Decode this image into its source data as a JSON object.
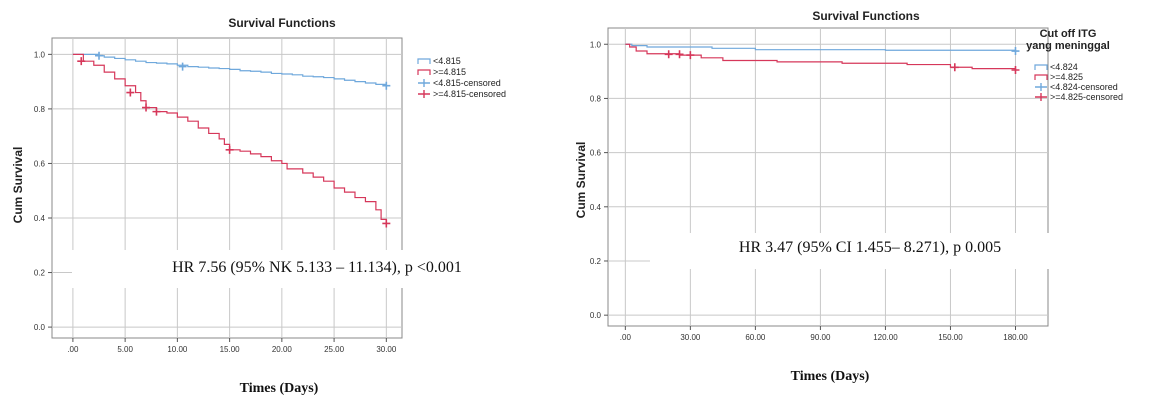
{
  "colors": {
    "low": "#6fa8dc",
    "high": "#d6375a",
    "grid": "#c8c8c8",
    "frame": "#888888"
  },
  "chart_data": [
    {
      "type": "line",
      "title": "Survival Functions",
      "ylabel": "Cum Survival",
      "xlabel": "Times (Days)",
      "xlim": [
        -2,
        31.5
      ],
      "ylim": [
        -0.04,
        1.06
      ],
      "x_ticks": [
        ".00",
        "5.00",
        "10.00",
        "15.00",
        "20.00",
        "25.00",
        "30.00"
      ],
      "x_tick_values": [
        0,
        5,
        10,
        15,
        20,
        25,
        30
      ],
      "y_ticks": [
        "0.0",
        "0.2",
        "0.4",
        "0.6",
        "0.8",
        "1.0"
      ],
      "y_tick_values": [
        0,
        0.2,
        0.4,
        0.6,
        0.8,
        1.0
      ],
      "grid": true,
      "legend_position": "top-right",
      "legend_title": "",
      "annotation": "HR 7.56 (95% NK 5.133 – 11.134), p <0.001",
      "faded_xlabel": "",
      "series": [
        {
          "name": "<4.815",
          "color_key": "low",
          "steps": [
            [
              0,
              1.0
            ],
            [
              2.5,
              0.995
            ],
            [
              3,
              0.99
            ],
            [
              4,
              0.985
            ],
            [
              5,
              0.98
            ],
            [
              6,
              0.975
            ],
            [
              7,
              0.97
            ],
            [
              8,
              0.968
            ],
            [
              9,
              0.965
            ],
            [
              10,
              0.96
            ],
            [
              11,
              0.955
            ],
            [
              12,
              0.953
            ],
            [
              13,
              0.95
            ],
            [
              14,
              0.948
            ],
            [
              15,
              0.945
            ],
            [
              16,
              0.94
            ],
            [
              17,
              0.938
            ],
            [
              18,
              0.935
            ],
            [
              19,
              0.93
            ],
            [
              20,
              0.928
            ],
            [
              21,
              0.925
            ],
            [
              22,
              0.92
            ],
            [
              23,
              0.918
            ],
            [
              24,
              0.915
            ],
            [
              25,
              0.91
            ],
            [
              26,
              0.905
            ],
            [
              27,
              0.9
            ],
            [
              28,
              0.895
            ],
            [
              29,
              0.89
            ],
            [
              30,
              0.885
            ]
          ]
        },
        {
          "name": ">=4.815",
          "color_key": "high",
          "steps": [
            [
              0,
              1.0
            ],
            [
              1,
              0.975
            ],
            [
              2,
              0.96
            ],
            [
              3,
              0.935
            ],
            [
              4,
              0.91
            ],
            [
              5,
              0.885
            ],
            [
              6,
              0.86
            ],
            [
              6.5,
              0.83
            ],
            [
              7,
              0.805
            ],
            [
              8,
              0.79
            ],
            [
              9,
              0.785
            ],
            [
              10,
              0.77
            ],
            [
              11,
              0.755
            ],
            [
              12,
              0.73
            ],
            [
              13,
              0.71
            ],
            [
              14,
              0.69
            ],
            [
              14.5,
              0.67
            ],
            [
              15,
              0.65
            ],
            [
              16,
              0.645
            ],
            [
              17,
              0.635
            ],
            [
              18,
              0.625
            ],
            [
              19,
              0.61
            ],
            [
              20,
              0.6
            ],
            [
              20.5,
              0.58
            ],
            [
              22,
              0.565
            ],
            [
              23,
              0.55
            ],
            [
              24,
              0.535
            ],
            [
              25,
              0.51
            ],
            [
              26,
              0.495
            ],
            [
              27,
              0.475
            ],
            [
              28,
              0.46
            ],
            [
              29,
              0.43
            ],
            [
              29.5,
              0.395
            ],
            [
              30,
              0.38
            ]
          ]
        }
      ],
      "censored": [
        {
          "name": "<4.815-censored",
          "color_key": "low",
          "points": [
            [
              2.5,
              0.995
            ],
            [
              10.5,
              0.955
            ],
            [
              30,
              0.885
            ]
          ]
        },
        {
          "name": ">=4.815-censored",
          "color_key": "high",
          "points": [
            [
              0.8,
              0.975
            ],
            [
              5.5,
              0.86
            ],
            [
              7,
              0.805
            ],
            [
              8,
              0.79
            ],
            [
              15,
              0.65
            ],
            [
              30,
              0.38
            ]
          ]
        }
      ]
    },
    {
      "type": "line",
      "title": "Survival Functions",
      "ylabel": "Cum Survival",
      "xlabel": "Times (Days)",
      "xlim": [
        -8,
        195
      ],
      "ylim": [
        -0.04,
        1.06
      ],
      "x_ticks": [
        ".00",
        "30.00",
        "60.00",
        "90.00",
        "120.00",
        "150.00",
        "180.00"
      ],
      "x_tick_values": [
        0,
        30,
        60,
        90,
        120,
        150,
        180
      ],
      "y_ticks": [
        "0.0",
        "0.2",
        "0.4",
        "0.6",
        "0.8",
        "1.0"
      ],
      "y_tick_values": [
        0,
        0.2,
        0.4,
        0.6,
        0.8,
        1.0
      ],
      "grid": true,
      "legend_position": "top-right",
      "legend_title": "Cut off ITG yang meninggal",
      "annotation": "HR 3.47 (95% CI 1.455– 8.271), p 0.005",
      "series": [
        {
          "name": "<4.824",
          "color_key": "low",
          "steps": [
            [
              0,
              1.0
            ],
            [
              3,
              0.995
            ],
            [
              10,
              0.99
            ],
            [
              40,
              0.985
            ],
            [
              60,
              0.98
            ],
            [
              120,
              0.978
            ],
            [
              180,
              0.975
            ]
          ]
        },
        {
          "name": ">=4.825",
          "color_key": "high",
          "steps": [
            [
              0,
              1.0
            ],
            [
              2,
              0.99
            ],
            [
              5,
              0.975
            ],
            [
              10,
              0.965
            ],
            [
              25,
              0.96
            ],
            [
              35,
              0.95
            ],
            [
              45,
              0.94
            ],
            [
              70,
              0.935
            ],
            [
              100,
              0.93
            ],
            [
              130,
              0.925
            ],
            [
              150,
              0.915
            ],
            [
              160,
              0.91
            ],
            [
              180,
              0.905
            ]
          ]
        }
      ],
      "censored": [
        {
          "name": "<4.824-censored",
          "color_key": "low",
          "points": [
            [
              180,
              0.975
            ]
          ]
        },
        {
          "name": ">=4.825-censored",
          "color_key": "high",
          "points": [
            [
              20,
              0.963
            ],
            [
              25,
              0.963
            ],
            [
              30,
              0.96
            ],
            [
              152,
              0.915
            ],
            [
              180,
              0.905
            ]
          ]
        }
      ]
    }
  ]
}
